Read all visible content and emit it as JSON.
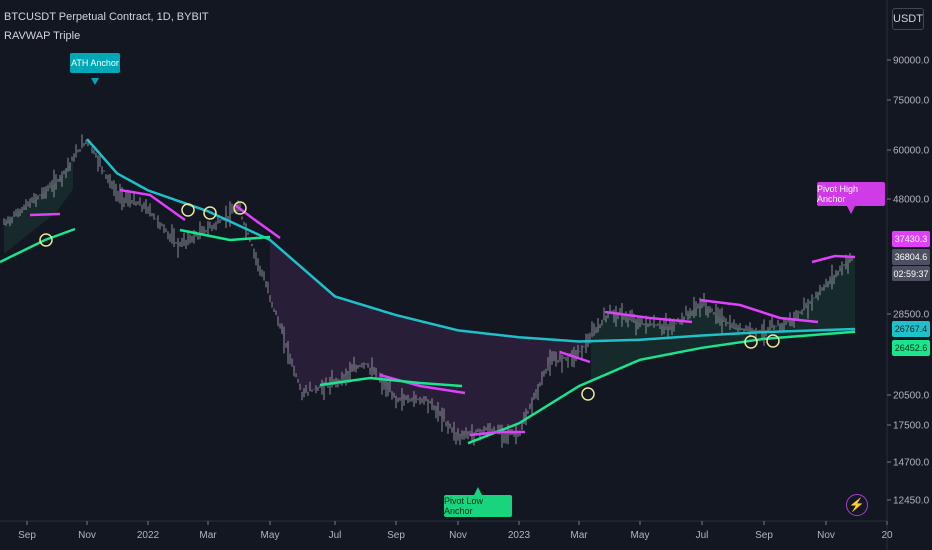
{
  "header": {
    "symbol_line": "BTCUSDT Perpetual Contract, 1D, BYBIT",
    "indicator_line": "RAVWAP Triple"
  },
  "price_axis": {
    "currency": "USDT",
    "ticks": [
      "90000.0",
      "75000.0",
      "60000.0",
      "48000.0",
      "28500.0",
      "20500.0",
      "17500.0",
      "14700.0",
      "12450.0"
    ],
    "badges": {
      "pivot_high": "37430.3",
      "last_price": "36804.6",
      "countdown": "02:59:37",
      "ath_vwap": "26767.4",
      "low_vwap": "26452.6"
    }
  },
  "time_axis": {
    "ticks": [
      "Sep",
      "Nov",
      "2022",
      "Mar",
      "May",
      "Jul",
      "Sep",
      "Nov",
      "2023",
      "Mar",
      "May",
      "Jul",
      "Sep",
      "Nov",
      "20"
    ]
  },
  "annotations": {
    "ath": "ATH Anchor",
    "pivot_high": "Pivot High Anchor",
    "pivot_low": "Pivot Low Anchor"
  },
  "colors": {
    "background": "#131722",
    "ath_vwap": "#1ec0c9",
    "low_vwap": "#18e58c",
    "high_vwap": "#e040fb",
    "candles": "#b2b5be",
    "circle": "#ece69a"
  },
  "chart_data": {
    "type": "line",
    "title": "BTCUSDT Perpetual Contract, 1D, BYBIT",
    "y_scale": "log",
    "ylim": [
      11500,
      125000
    ],
    "x_ticks": [
      "Sep",
      "Nov",
      "2022",
      "Mar",
      "May",
      "Jul",
      "Sep",
      "Nov",
      "2023",
      "Mar",
      "May",
      "Jul",
      "Sep",
      "Nov"
    ],
    "series": [
      {
        "name": "Price",
        "points": [
          [
            "Sep",
            43000
          ],
          [
            "Oct",
            52000
          ],
          [
            "Nov",
            63000
          ],
          [
            "Dec",
            49000
          ],
          [
            "2022",
            46000
          ],
          [
            "Feb",
            39000
          ],
          [
            "Mar",
            42000
          ],
          [
            "Apr",
            46000
          ],
          [
            "May",
            31000
          ],
          [
            "Jun",
            20000
          ],
          [
            "Jul",
            21000
          ],
          [
            "Aug",
            23000
          ],
          [
            "Sep",
            19500
          ],
          [
            "Oct",
            19500
          ],
          [
            "Nov",
            16500
          ],
          [
            "Dec",
            17000
          ],
          [
            "2023",
            16600
          ],
          [
            "Feb",
            23000
          ],
          [
            "Mar",
            24000
          ],
          [
            "Apr",
            29000
          ],
          [
            "May",
            27500
          ],
          [
            "Jun",
            27000
          ],
          [
            "Jul",
            30000
          ],
          [
            "Aug",
            27000
          ],
          [
            "Sep",
            26500
          ],
          [
            "Oct",
            28000
          ],
          [
            "Nov",
            36800
          ]
        ]
      },
      {
        "name": "ATH VWAP",
        "points": [
          [
            "Nov",
            63000
          ],
          [
            "Dec",
            54000
          ],
          [
            "2022",
            50000
          ],
          [
            "Mar",
            45500
          ],
          [
            "May",
            40000
          ],
          [
            "Jul",
            31000
          ],
          [
            "Sep",
            28500
          ],
          [
            "Nov",
            26600
          ],
          [
            "2023",
            25800
          ],
          [
            "Mar",
            25300
          ],
          [
            "May",
            25500
          ],
          [
            "Jul",
            26000
          ],
          [
            "Sep",
            26400
          ],
          [
            "Nov",
            26767
          ]
        ]
      },
      {
        "name": "Low VWAP",
        "points": [
          [
            "Nov",
            16000
          ],
          [
            "2023",
            17500
          ],
          [
            "Mar",
            20700
          ],
          [
            "May",
            23300
          ],
          [
            "Jul",
            24600
          ],
          [
            "Sep",
            25600
          ],
          [
            "Nov",
            26452
          ]
        ]
      }
    ],
    "annotations": [
      "ATH Anchor",
      "Pivot High Anchor",
      "Pivot Low Anchor"
    ]
  }
}
